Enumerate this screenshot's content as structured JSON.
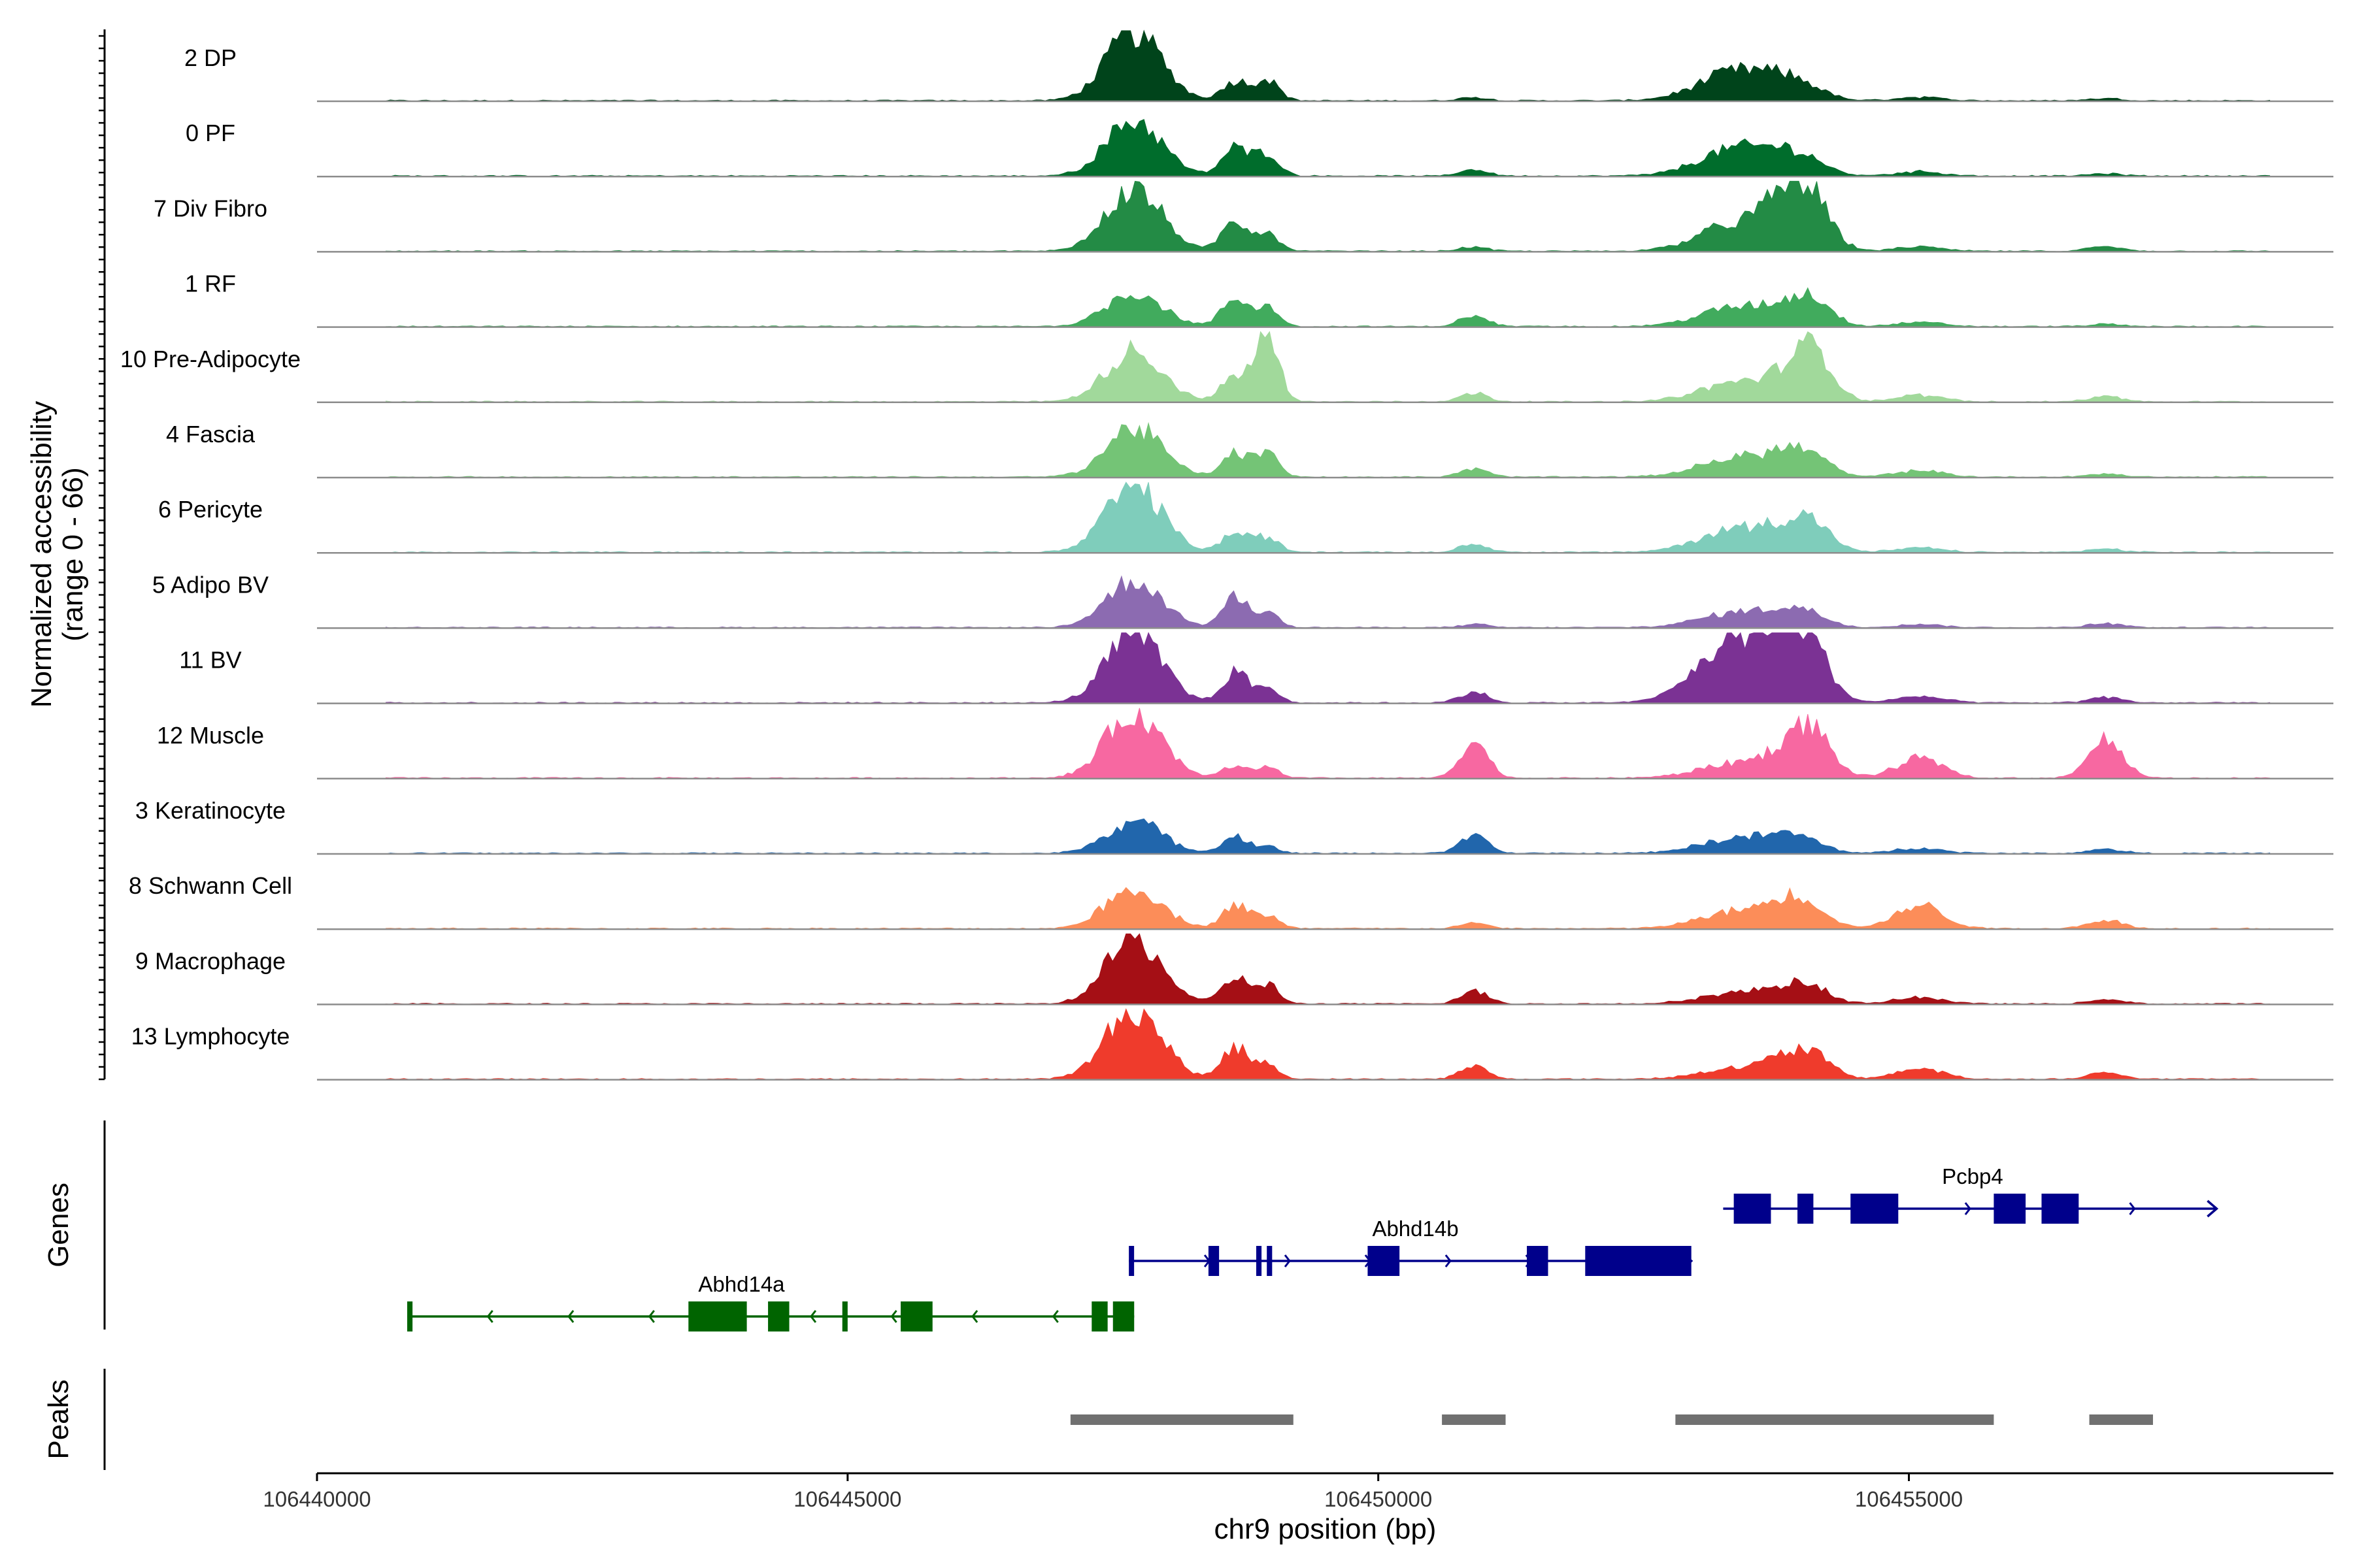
{
  "chart_data": {
    "type": "area",
    "title": "",
    "ylabel_line1": "Normalized accessibility",
    "ylabel_line2": "(range 0 - 66)",
    "ylim": [
      0,
      66
    ],
    "xlabel": "chr9 position (bp)",
    "xlim": [
      106440000,
      106459000
    ],
    "x_ticks": [
      {
        "value": 106440000,
        "label": "106440000"
      },
      {
        "value": 106445000,
        "label": "106445000"
      },
      {
        "value": 106450000,
        "label": "106450000"
      },
      {
        "value": 106455000,
        "label": "106455000"
      }
    ],
    "peak_centers": [
      106447700,
      106448650,
      106448950,
      106450900,
      106453400,
      106453850,
      106454100,
      106455100,
      106456850
    ],
    "tracks": [
      {
        "name": "2 DP",
        "color": "#00441b",
        "scale": [
          64,
          18,
          20,
          3,
          28,
          10,
          6,
          3,
          2
        ]
      },
      {
        "name": "0 PF",
        "color": "#006d2c",
        "scale": [
          52,
          26,
          22,
          6,
          26,
          12,
          8,
          4,
          2
        ]
      },
      {
        "name": "7 Div Fibro",
        "color": "#238b45",
        "scale": [
          58,
          28,
          18,
          4,
          26,
          38,
          36,
          4,
          4
        ]
      },
      {
        "name": "1 RF",
        "color": "#41ab5d",
        "scale": [
          32,
          26,
          18,
          10,
          18,
          10,
          22,
          4,
          2
        ]
      },
      {
        "name": "10 Pre-Adipocyte",
        "color": "#a1d99b",
        "scale": [
          48,
          24,
          62,
          8,
          18,
          14,
          44,
          6,
          5
        ]
      },
      {
        "name": "4 Fascia",
        "color": "#74c476",
        "scale": [
          46,
          22,
          22,
          8,
          18,
          14,
          14,
          6,
          3
        ]
      },
      {
        "name": "6 Pericyte",
        "color": "#7fcdbb",
        "scale": [
          62,
          18,
          14,
          8,
          22,
          14,
          22,
          4,
          3
        ]
      },
      {
        "name": "5 Adipo BV",
        "color": "#8c6bb1",
        "scale": [
          44,
          28,
          14,
          3,
          14,
          10,
          8,
          3,
          4
        ]
      },
      {
        "name": "11 BV",
        "color": "#7b3294",
        "scale": [
          64,
          28,
          14,
          10,
          60,
          40,
          34,
          6,
          5
        ]
      },
      {
        "name": "12 Muscle",
        "color": "#f768a1",
        "scale": [
          62,
          12,
          10,
          34,
          14,
          18,
          38,
          18,
          36
        ]
      },
      {
        "name": "3 Keratinocyte",
        "color": "#2166ac",
        "scale": [
          30,
          16,
          6,
          16,
          14,
          10,
          6,
          5,
          4
        ]
      },
      {
        "name": "8 Schwann Cell",
        "color": "#fc8d59",
        "scale": [
          38,
          22,
          12,
          5,
          16,
          18,
          14,
          22,
          8
        ]
      },
      {
        "name": "9 Macrophage",
        "color": "#a50f15",
        "scale": [
          60,
          24,
          18,
          12,
          10,
          10,
          12,
          6,
          4
        ]
      },
      {
        "name": "13 Lymphocyte",
        "color": "#ef3b2c",
        "scale": [
          66,
          30,
          14,
          12,
          10,
          14,
          18,
          10,
          6
        ]
      }
    ],
    "genes_label": "Genes",
    "genes": [
      {
        "name": "Abhd14a",
        "strand": "-",
        "color": "#006400",
        "start": 106440850,
        "end": 106447700,
        "label_x": 106444000,
        "row": 2,
        "exons": [
          [
            106440850,
            106440900
          ],
          [
            106443500,
            106444050
          ],
          [
            106444250,
            106444450
          ],
          [
            106444950,
            106445000
          ],
          [
            106445500,
            106445800
          ],
          [
            106447300,
            106447450
          ],
          [
            106447500,
            106447700
          ]
        ]
      },
      {
        "name": "Abhd14b",
        "strand": "+",
        "color": "#00008b",
        "start": 106447650,
        "end": 106452950,
        "label_x": 106450350,
        "row": 1,
        "exons": [
          [
            106447650,
            106447680
          ],
          [
            106448400,
            106448500
          ],
          [
            106448850,
            106448900
          ],
          [
            106448950,
            106449000
          ],
          [
            106449900,
            106450200
          ],
          [
            106451400,
            106451600
          ],
          [
            106451950,
            106452950
          ]
        ]
      },
      {
        "name": "Pcbp4",
        "strand": "+",
        "color": "#00008b",
        "start": 106453250,
        "end": 106457900,
        "label_x": 106455600,
        "row": 0,
        "exons": [
          [
            106453350,
            106453700
          ],
          [
            106453950,
            106454100
          ],
          [
            106454450,
            106454900
          ],
          [
            106455800,
            106456100
          ],
          [
            106456250,
            106456600
          ]
        ]
      }
    ],
    "peaks_label": "Peaks",
    "peaks_color": "#707070",
    "peaks": [
      [
        106447100,
        106449200
      ],
      [
        106450600,
        106451200
      ],
      [
        106452800,
        106455800
      ],
      [
        106456700,
        106457300
      ]
    ]
  }
}
